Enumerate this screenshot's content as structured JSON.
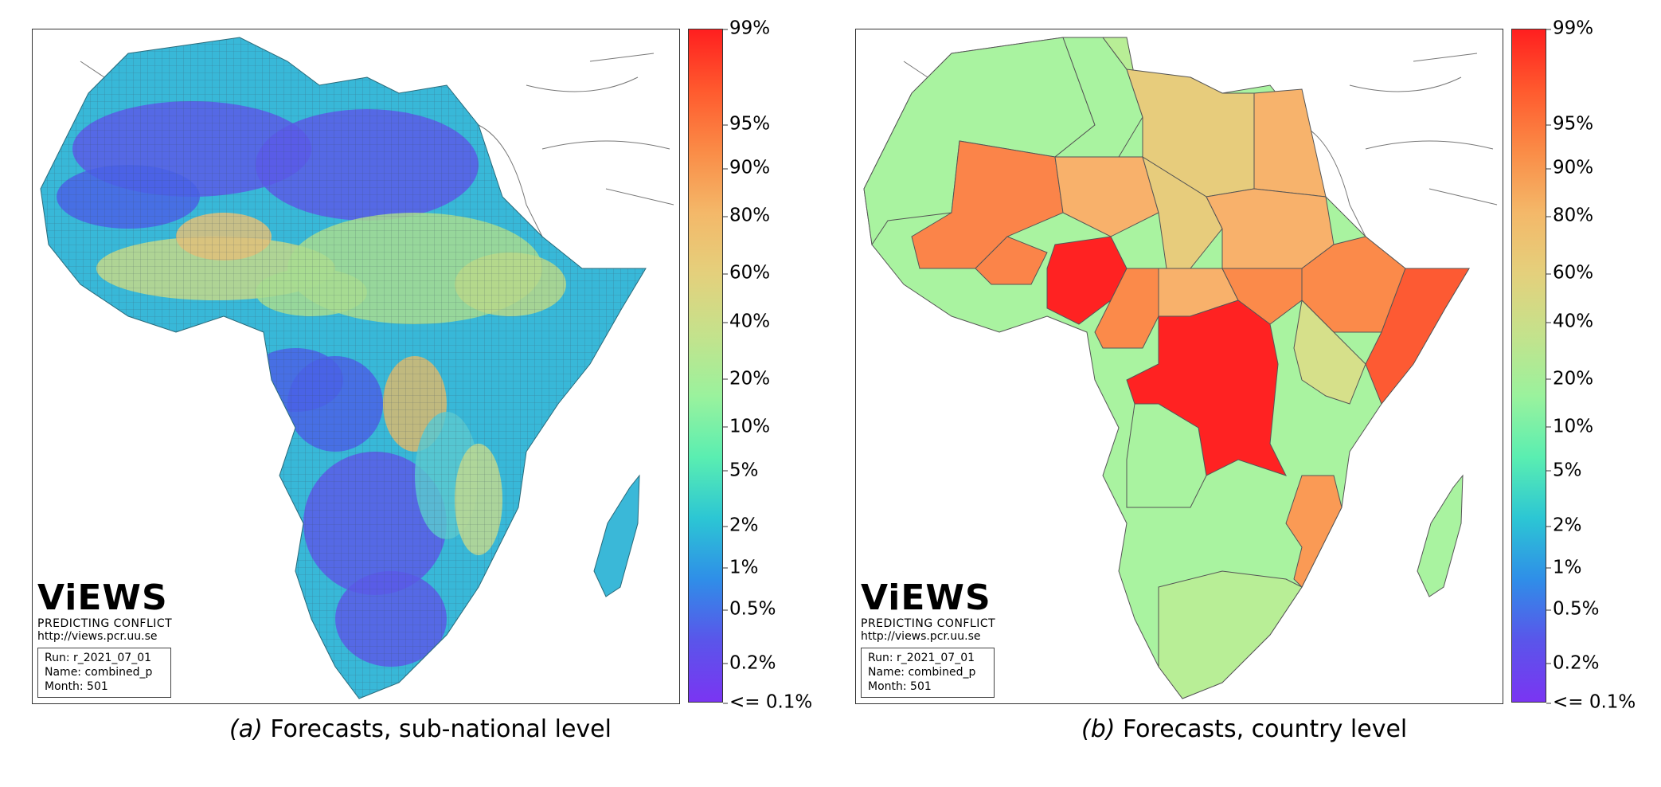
{
  "colorbar": {
    "ticks": [
      {
        "label": "99%",
        "frac": 0.0
      },
      {
        "label": "95%",
        "frac": 0.142
      },
      {
        "label": "90%",
        "frac": 0.207
      },
      {
        "label": "80%",
        "frac": 0.278
      },
      {
        "label": "60%",
        "frac": 0.363
      },
      {
        "label": "40%",
        "frac": 0.435
      },
      {
        "label": "20%",
        "frac": 0.52
      },
      {
        "label": "10%",
        "frac": 0.591
      },
      {
        "label": "5%",
        "frac": 0.656
      },
      {
        "label": "2%",
        "frac": 0.738
      },
      {
        "label": "1%",
        "frac": 0.8
      },
      {
        "label": "0.5%",
        "frac": 0.862
      },
      {
        "label": "0.2%",
        "frac": 0.942
      },
      {
        "label": "<= 0.1%",
        "frac": 1.0
      }
    ],
    "colors": [
      "#ff1f1f",
      "#ff5a2e",
      "#fa8c47",
      "#f4b869",
      "#e4d07c",
      "#c4e28c",
      "#9af29d",
      "#5aeeb1",
      "#2cc6d4",
      "#2f8ee8",
      "#5a55ea",
      "#7a35f2"
    ]
  },
  "panels": [
    {
      "caption_prefix": "(a)",
      "caption": "Forecasts, sub-national level",
      "logo": {
        "word": "ViEWS",
        "tagline": "PREDICTING CONFLICT",
        "url": "http://views.pcr.uu.se"
      },
      "run": {
        "run": "Run: r_2021_07_01",
        "name": "Name: combined_p",
        "month": "Month: 501"
      }
    },
    {
      "caption_prefix": "(b)",
      "caption": "Forecasts, country level",
      "logo": {
        "word": "ViEWS",
        "tagline": "PREDICTING CONFLICT",
        "url": "http://views.pcr.uu.se"
      },
      "run": {
        "run": "Run: r_2021_07_01",
        "name": "Name: combined_p",
        "month": "Month: 501"
      },
      "countries": [
        {
          "name": "Morocco/W. Sahara/Mauritania",
          "color": "#a9f3a0"
        },
        {
          "name": "Algeria",
          "color": "#a9f3a0"
        },
        {
          "name": "Tunisia",
          "color": "#b8ee96"
        },
        {
          "name": "Libya",
          "color": "#e7cc7c"
        },
        {
          "name": "Egypt",
          "color": "#f7b36c"
        },
        {
          "name": "Mali",
          "color": "#fb8449"
        },
        {
          "name": "Niger",
          "color": "#f8b16b"
        },
        {
          "name": "Chad",
          "color": "#e7cc7c"
        },
        {
          "name": "Sudan",
          "color": "#f8b16b"
        },
        {
          "name": "Nigeria",
          "color": "#ff2222"
        },
        {
          "name": "Burkina Faso",
          "color": "#fb8449"
        },
        {
          "name": "Cameroon",
          "color": "#fb8a4a"
        },
        {
          "name": "CAR",
          "color": "#f8b16b"
        },
        {
          "name": "South Sudan",
          "color": "#fb8a4a"
        },
        {
          "name": "Ethiopia",
          "color": "#fb8a4a"
        },
        {
          "name": "Somalia",
          "color": "#fd5a33"
        },
        {
          "name": "DR Congo",
          "color": "#ff2222"
        },
        {
          "name": "Kenya",
          "color": "#d6e08a"
        },
        {
          "name": "Mozambique",
          "color": "#fa9a55"
        },
        {
          "name": "Angola",
          "color": "#a9f3a0"
        },
        {
          "name": "South Africa",
          "color": "#b8ee96"
        },
        {
          "name": "Madagascar",
          "color": "#a9f3a0"
        }
      ]
    }
  ]
}
